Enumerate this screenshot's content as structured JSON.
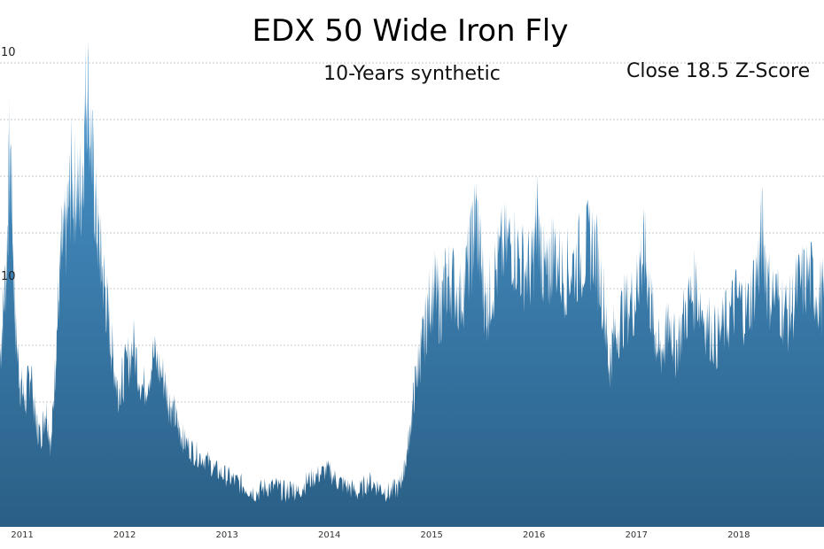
{
  "chart_data": {
    "type": "area",
    "title": "EDX 50 Wide Iron Fly",
    "subtitle": "10-Years synthetic",
    "annotation": "Close 18.5 Z-Score",
    "y_tick_labels": [
      "10",
      "10"
    ],
    "x_tick_labels": [
      "2011",
      "2012",
      "2013",
      "2014",
      "2015",
      "2016",
      "2017",
      "2018"
    ],
    "ylim": [
      0,
      85
    ],
    "xlim": [
      2010.8,
      2018.85
    ],
    "grid": true,
    "gradient_colors": [
      "#4a98d0",
      "#2a5f86"
    ],
    "x": [
      2010.8,
      2010.86,
      2010.9,
      2010.95,
      2011.0,
      2011.05,
      2011.1,
      2011.15,
      2011.2,
      2011.25,
      2011.3,
      2011.35,
      2011.4,
      2011.45,
      2011.5,
      2011.55,
      2011.6,
      2011.65,
      2011.7,
      2011.75,
      2011.8,
      2011.85,
      2011.9,
      2011.95,
      2012.0,
      2012.1,
      2012.2,
      2012.3,
      2012.4,
      2012.45,
      2012.5,
      2012.55,
      2012.6,
      2012.7,
      2012.8,
      2012.9,
      2013.0,
      2013.1,
      2013.2,
      2013.3,
      2013.4,
      2013.5,
      2013.6,
      2013.65,
      2013.7,
      2013.8,
      2013.9,
      2014.0,
      2014.1,
      2014.2,
      2014.3,
      2014.4,
      2014.5,
      2014.6,
      2014.7,
      2014.75,
      2014.8,
      2014.85,
      2014.9,
      2014.95,
      2015.0,
      2015.05,
      2015.1,
      2015.15,
      2015.2,
      2015.3,
      2015.4,
      2015.45,
      2015.5,
      2015.55,
      2015.6,
      2015.7,
      2015.8,
      2015.9,
      2016.0,
      2016.05,
      2016.1,
      2016.15,
      2016.2,
      2016.3,
      2016.4,
      2016.5,
      2016.6,
      2016.7,
      2016.75,
      2016.8,
      2016.9,
      2017.0,
      2017.05,
      2017.1,
      2017.15,
      2017.2,
      2017.25,
      2017.3,
      2017.35,
      2017.4,
      2017.5,
      2017.6,
      2017.7,
      2017.8,
      2017.9,
      2018.0,
      2018.1,
      2018.2,
      2018.25,
      2018.3,
      2018.4,
      2018.5,
      2018.6,
      2018.7,
      2018.8,
      2018.85
    ],
    "values": [
      30,
      45,
      68,
      35,
      25,
      22,
      28,
      18,
      16,
      21,
      14,
      33,
      48,
      52,
      62,
      58,
      60,
      80,
      64,
      52,
      45,
      38,
      30,
      24,
      26,
      32,
      24,
      30,
      26,
      22,
      20,
      17,
      15,
      13,
      12,
      10,
      9,
      8,
      7,
      6,
      7,
      7,
      6,
      7,
      6,
      8,
      9,
      10,
      8,
      7,
      6,
      8,
      7,
      6,
      7,
      10,
      16,
      24,
      30,
      34,
      40,
      42,
      38,
      42,
      44,
      40,
      48,
      55,
      46,
      38,
      42,
      48,
      50,
      46,
      45,
      54,
      46,
      43,
      49,
      44,
      46,
      48,
      50,
      40,
      28,
      34,
      38,
      40,
      46,
      48,
      40,
      34,
      30,
      33,
      36,
      31,
      38,
      42,
      36,
      33,
      36,
      40,
      38,
      45,
      52,
      42,
      40,
      37,
      42,
      44,
      41,
      40
    ]
  }
}
